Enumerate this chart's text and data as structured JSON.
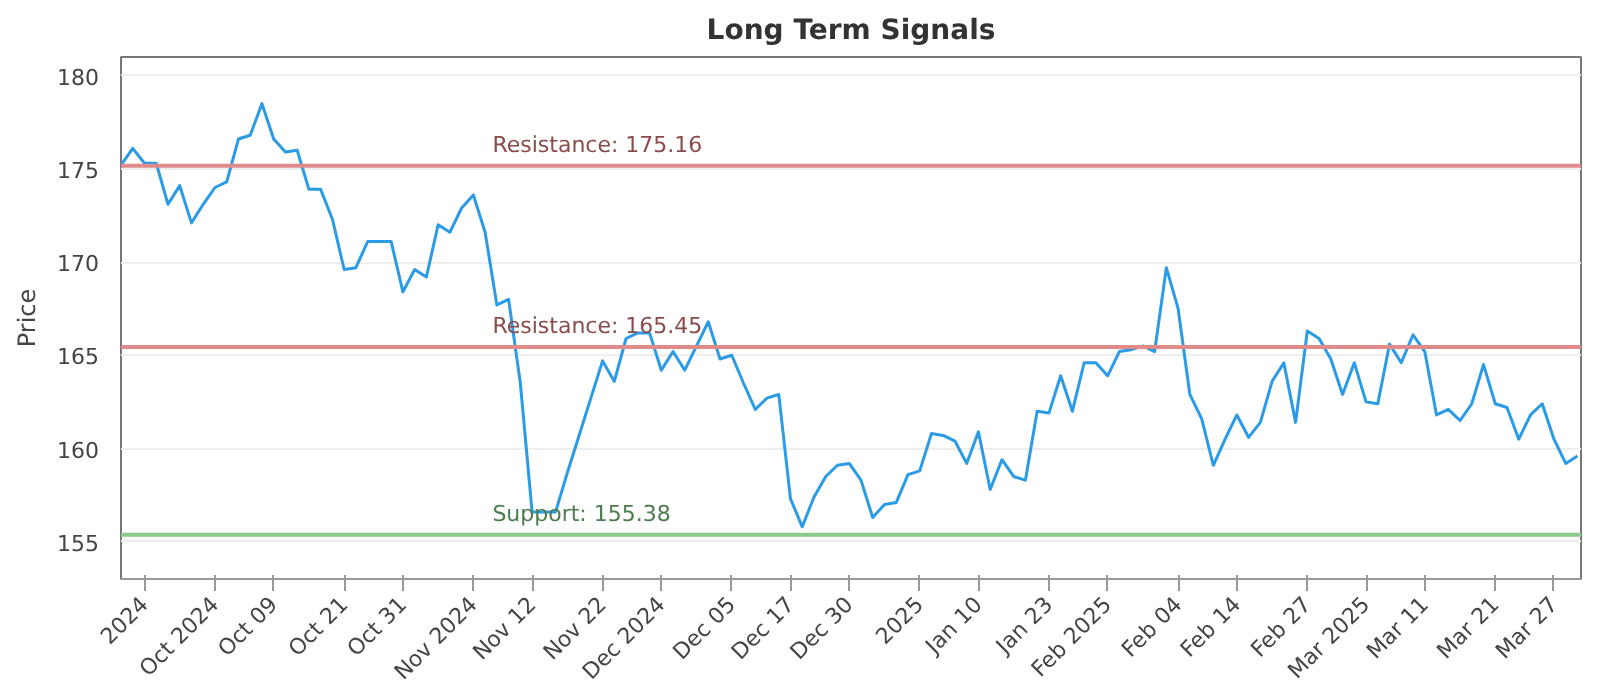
{
  "chart_data": {
    "type": "line",
    "title": "Long Term Signals",
    "ylabel": "Price",
    "ylim": [
      153,
      181
    ],
    "categories": [
      null,
      null,
      "2024",
      null,
      null,
      null,
      null,
      null,
      "Oct 2024",
      null,
      null,
      null,
      null,
      "Oct 09",
      null,
      null,
      null,
      null,
      null,
      "Oct 21",
      null,
      null,
      null,
      null,
      "Oct 31",
      null,
      null,
      null,
      null,
      null,
      "Nov 2024",
      null,
      null,
      null,
      null,
      "Nov 12",
      null,
      null,
      null,
      null,
      null,
      "Nov 22",
      null,
      null,
      null,
      null,
      "Dec 2024",
      null,
      null,
      null,
      null,
      null,
      "Dec 05",
      null,
      null,
      null,
      null,
      "Dec 17",
      null,
      null,
      null,
      null,
      "Dec 30",
      null,
      null,
      null,
      null,
      null,
      "2025",
      null,
      null,
      null,
      null,
      "Jan 10",
      null,
      null,
      null,
      null,
      null,
      "Jan 23",
      null,
      null,
      null,
      null,
      "Feb 2025",
      null,
      null,
      null,
      null,
      null,
      "Feb 04",
      null,
      null,
      null,
      null,
      "Feb 14",
      null,
      null,
      null,
      null,
      null,
      "Feb 27",
      null,
      null,
      null,
      null,
      "Mar 2025",
      null,
      null,
      null,
      null,
      "Mar 11",
      null,
      null,
      null,
      null,
      null,
      "Mar 21",
      null,
      null,
      null,
      null,
      "Mar 27",
      null,
      null
    ],
    "yticks": [
      155,
      160,
      165,
      170,
      175,
      180
    ],
    "grid": "y",
    "marker": "none",
    "line_style": "solid",
    "ref_lines": [
      {
        "axis": "y",
        "value": 175.16,
        "label": "Resistance: 175.16",
        "color": "#e08a8a"
      },
      {
        "axis": "y",
        "value": 165.45,
        "label": "Resistance: 165.45",
        "color": "#e08a8a"
      },
      {
        "axis": "y",
        "value": 155.38,
        "label": "Support: 155.38",
        "color": "#8cc98c"
      }
    ],
    "series": [
      {
        "color": "#2b9be6",
        "values": [
          175.2,
          176.1,
          175.3,
          175.3,
          173.1,
          174.1,
          172.1,
          173.1,
          174.0,
          174.3,
          176.6,
          176.8,
          178.5,
          176.6,
          175.9,
          176.0,
          173.9,
          173.9,
          172.3,
          169.6,
          169.7,
          171.1,
          171.1,
          171.1,
          168.4,
          169.6,
          169.2,
          172.0,
          171.6,
          172.9,
          173.6,
          171.6,
          167.7,
          168.0,
          163.5,
          156.6,
          156.6,
          156.6,
          158.7,
          160.7,
          162.7,
          164.7,
          163.6,
          165.9,
          166.2,
          166.2,
          164.2,
          165.2,
          164.2,
          165.5,
          166.8,
          164.8,
          165.0,
          163.5,
          162.1,
          162.7,
          162.9,
          157.3,
          155.8,
          157.4,
          158.5,
          159.1,
          159.2,
          158.3,
          156.3,
          157.0,
          157.1,
          158.6,
          158.8,
          160.8,
          160.7,
          160.4,
          159.2,
          160.9,
          157.8,
          159.4,
          158.5,
          158.3,
          162.0,
          161.9,
          163.9,
          162.0,
          164.6,
          164.6,
          163.9,
          165.2,
          165.3,
          165.5,
          165.2,
          169.7,
          167.5,
          162.9,
          161.6,
          159.1,
          160.5,
          161.8,
          160.6,
          161.4,
          163.6,
          164.6,
          161.4,
          166.3,
          165.9,
          164.8,
          162.9,
          164.6,
          162.5,
          162.4,
          165.6,
          164.6,
          166.1,
          165.2,
          161.8,
          162.1,
          161.5,
          162.4,
          164.5,
          162.4,
          162.2,
          160.5,
          161.8,
          162.4,
          160.5,
          159.2,
          159.6
        ]
      }
    ]
  }
}
